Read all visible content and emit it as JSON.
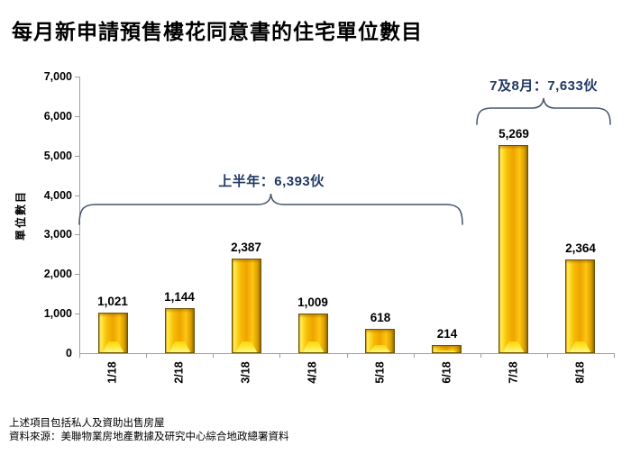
{
  "title": "每月新申請預售樓花同意書的住宅單位數目",
  "chart_data": {
    "type": "bar",
    "categories": [
      "1/18",
      "2/18",
      "3/18",
      "4/18",
      "5/18",
      "6/18",
      "7/18",
      "8/18"
    ],
    "values": [
      1021,
      1144,
      2387,
      1009,
      618,
      214,
      5269,
      2364
    ],
    "value_labels": [
      "1,021",
      "1,144",
      "2,387",
      "1,009",
      "618",
      "214",
      "5,269",
      "2,364"
    ],
    "title": "每月新申請預售樓花同意書的住宅單位數目",
    "xlabel": "",
    "ylabel": "單位數目",
    "ylim": [
      0,
      7000
    ],
    "ytick_interval": 1000,
    "ytick_labels": [
      "0",
      "1,000",
      "2,000",
      "3,000",
      "4,000",
      "5,000",
      "6,000",
      "7,000"
    ],
    "grid": false,
    "legend": "none",
    "annotations": [
      {
        "label": "上半年：6,393伙",
        "total": 6393,
        "from_category": "1/18",
        "to_category": "6/18"
      },
      {
        "label": "7及8月：7,633伙",
        "total": 7633,
        "from_category": "7/18",
        "to_category": "8/18"
      }
    ],
    "bar_color": "#FFC611",
    "bar_edge_color": "#6E5200",
    "annotation_color": "#1F3864",
    "brace_color": "#44546A",
    "axis_color": "#9E9E9E"
  },
  "footnotes": [
    "上述項目包括私人及資助出售房屋",
    "資料來源：美聯物業房地產數據及研究中心綜合地政總署資料"
  ]
}
